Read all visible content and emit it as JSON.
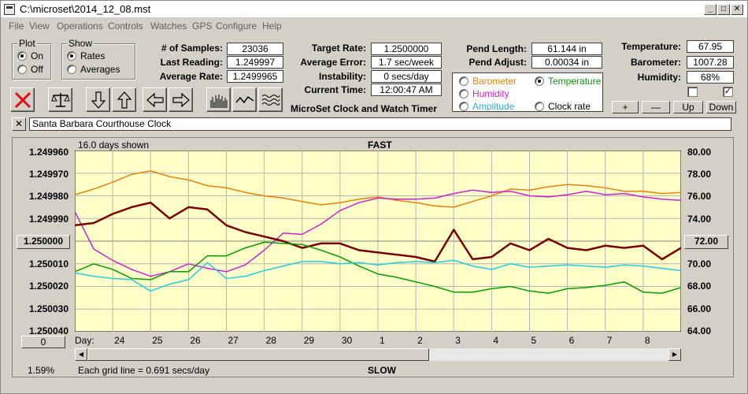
{
  "window": {
    "title": "C:\\microset\\2014_12_08.mst"
  },
  "menu": [
    "File",
    "View",
    "Operations",
    "Controls",
    "Watches",
    "GPS",
    "Configure",
    "Help"
  ],
  "plot_group": {
    "title": "Plot",
    "on": "On",
    "off": "Off",
    "selected": "On"
  },
  "show_group": {
    "title": "Show",
    "rates": "Rates",
    "averages": "Averages",
    "selected": "Rates"
  },
  "stats": {
    "samples_label": "# of Samples:",
    "samples": "23036",
    "last_reading_label": "Last Reading:",
    "last_reading": "1.249997",
    "average_rate_label": "Average Rate:",
    "average_rate": "1.2499965"
  },
  "rates": {
    "target_rate_label": "Target Rate:",
    "target_rate": "1.2500000",
    "average_error_label": "Average Error:",
    "average_error": "1.7 sec/week",
    "instability_label": "Instability:",
    "instability": "0 secs/day",
    "current_time_label": "Current Time:",
    "current_time": "12:00:47 AM"
  },
  "app_caption": "MicroSet Clock and Watch Timer",
  "pendulum": {
    "length_label": "Pend Length:",
    "length": "61.144 in",
    "adjust_label": "Pend Adjust:",
    "adjust": "0.00034 in"
  },
  "env": {
    "temperature_label": "Temperature:",
    "temperature": "67.95",
    "barometer_label": "Barometer:",
    "barometer": "1007.28",
    "humidity_label": "Humidity:",
    "humidity": "68%"
  },
  "overlay": {
    "barometer": "Barometer",
    "temperature": "Temperature",
    "humidity": "Humidity",
    "amplitude": "Amplitude",
    "clock_rate": "Clock rate",
    "selected": "Temperature",
    "colors": {
      "barometer": "#e8820c",
      "temperature": "#00a000",
      "humidity": "#d020d0",
      "amplitude": "#20d0e0",
      "rate": "#7a0000"
    }
  },
  "scale_buttons": {
    "plus": "+",
    "minus": "—",
    "up": "Up",
    "down": "Down"
  },
  "watch_name": "Santa Barbara Courthouse Clock",
  "toolbar_icons": [
    "close-x-icon",
    "balance-scale-icon",
    "arrow-down-icon",
    "arrow-up-icon",
    "arrow-left-icon",
    "arrow-right-icon",
    "bar-chart-icon",
    "wave-icon",
    "multi-wave-icon"
  ],
  "plot": {
    "days_shown": "16.0 days shown",
    "top_caption": "FAST",
    "bottom_caption": "SLOW",
    "grid_caption": "Each grid line = 0.691 secs/day",
    "left_button": "1.250000",
    "right_button": "72.00",
    "bottom_left_button": "0",
    "bottom_left_percent": "1.59%",
    "day_prefix": "Day:"
  },
  "chart_data": {
    "type": "line",
    "x_unit": "day",
    "x_tick_labels": [
      "24",
      "25",
      "26",
      "27",
      "28",
      "29",
      "30",
      "1",
      "2",
      "3",
      "4",
      "5",
      "6",
      "7",
      "8"
    ],
    "y_left": {
      "tick_labels": [
        "1.249960",
        "1.249970",
        "1.249980",
        "1.249990",
        "1.250000",
        "1.250010",
        "1.250020",
        "1.250030",
        "1.250040"
      ],
      "range": [
        1.24996,
        1.25004
      ],
      "inverted": true
    },
    "y_right": {
      "tick_labels": [
        "80.00",
        "78.00",
        "76.00",
        "74.00",
        "72.00",
        "70.00",
        "68.00",
        "66.00",
        "64.00"
      ],
      "range": [
        64,
        80
      ]
    },
    "grid": true,
    "series": [
      {
        "key": "barometer",
        "axis": "right",
        "x": [
          23,
          23.5,
          24,
          24.5,
          25,
          25.5,
          26,
          26.5,
          27,
          27.5,
          28,
          28.5,
          29,
          29.5,
          30,
          30.5,
          31,
          31.5,
          32,
          32.5,
          33,
          33.5,
          34,
          34.5,
          35,
          35.5,
          36,
          36.5,
          37,
          37.5,
          38,
          38.5,
          39
        ],
        "y": [
          76.1,
          76.6,
          77.2,
          77.9,
          78.2,
          77.7,
          77.4,
          76.9,
          76.7,
          76.3,
          76.0,
          75.8,
          75.5,
          75.2,
          75.4,
          75.7,
          75.9,
          75.6,
          75.4,
          75.1,
          75.0,
          75.5,
          76.0,
          76.6,
          76.5,
          76.8,
          77.0,
          76.9,
          76.7,
          76.4,
          76.4,
          76.2,
          76.3
        ]
      },
      {
        "key": "humidity",
        "axis": "right",
        "x": [
          23,
          23.5,
          24,
          24.5,
          25,
          25.5,
          26,
          26.5,
          27,
          27.5,
          28,
          28.5,
          29,
          29.5,
          30,
          30.5,
          31,
          31.5,
          32,
          32.5,
          33,
          33.5,
          34,
          34.5,
          35,
          35.5,
          36,
          36.5,
          37,
          37.5,
          38,
          38.5,
          39
        ],
        "y": [
          74.6,
          71.3,
          70.3,
          69.5,
          68.9,
          69.3,
          70.0,
          69.6,
          69.3,
          69.9,
          71.2,
          72.7,
          72.6,
          73.5,
          74.7,
          75.4,
          75.8,
          75.7,
          75.7,
          75.8,
          76.2,
          76.5,
          76.3,
          76.4,
          76.0,
          75.9,
          76.1,
          76.4,
          76.1,
          76.2,
          75.9,
          75.7,
          75.6
        ]
      },
      {
        "key": "rate",
        "axis": "left",
        "x": [
          23,
          23.5,
          24,
          24.5,
          25,
          25.5,
          26,
          26.5,
          27,
          27.5,
          28,
          28.5,
          29,
          29.5,
          30,
          30.5,
          31,
          31.5,
          32,
          32.5,
          33,
          33.5,
          34,
          34.5,
          35,
          35.5,
          36,
          36.5,
          37,
          37.5,
          38,
          38.5,
          39
        ],
        "y": [
          1.249993,
          1.249992,
          1.249988,
          1.249985,
          1.249983,
          1.24999,
          1.249985,
          1.249986,
          1.249993,
          1.249996,
          1.249998,
          1.25,
          1.250003,
          1.250001,
          1.250001,
          1.250004,
          1.250005,
          1.250006,
          1.250007,
          1.250009,
          1.249995,
          1.250008,
          1.250007,
          1.250001,
          1.250004,
          1.249999,
          1.250003,
          1.250004,
          1.250002,
          1.250003,
          1.250002,
          1.250008,
          1.250003
        ]
      },
      {
        "key": "temperature",
        "axis": "right",
        "x": [
          23,
          23.5,
          24,
          24.5,
          25,
          25.5,
          26,
          26.5,
          27,
          27.5,
          28,
          28.5,
          29,
          29.5,
          30,
          30.5,
          31,
          31.5,
          32,
          32.5,
          33,
          33.5,
          34,
          34.5,
          35,
          35.5,
          36,
          36.5,
          37,
          37.5,
          38,
          38.5,
          39
        ],
        "y": [
          69.3,
          70.0,
          69.5,
          68.7,
          68.6,
          69.3,
          69.3,
          70.7,
          70.7,
          71.4,
          71.9,
          71.8,
          71.7,
          71.2,
          70.6,
          69.8,
          69.1,
          68.8,
          68.4,
          68.0,
          67.5,
          67.5,
          67.8,
          68.0,
          67.6,
          67.4,
          67.8,
          67.9,
          68.1,
          68.4,
          67.5,
          67.4,
          67.9
        ]
      },
      {
        "key": "amplitude",
        "axis": "right",
        "x": [
          23,
          23.5,
          24,
          24.5,
          25,
          25.5,
          26,
          26.5,
          27,
          27.5,
          28,
          28.5,
          29,
          29.5,
          30,
          30.5,
          31,
          31.5,
          32,
          32.5,
          33,
          33.5,
          34,
          34.5,
          35,
          35.5,
          36,
          36.5,
          37,
          37.5,
          38,
          38.5,
          39
        ],
        "y": [
          69.2,
          68.9,
          68.7,
          68.6,
          67.6,
          68.2,
          68.6,
          70.1,
          68.7,
          68.9,
          69.4,
          69.8,
          70.2,
          70.2,
          70.0,
          70.1,
          69.9,
          70.1,
          70.2,
          70.1,
          70.3,
          69.8,
          69.5,
          70.0,
          69.7,
          69.8,
          69.9,
          69.8,
          69.7,
          69.9,
          69.8,
          69.6,
          69.4
        ]
      }
    ]
  }
}
